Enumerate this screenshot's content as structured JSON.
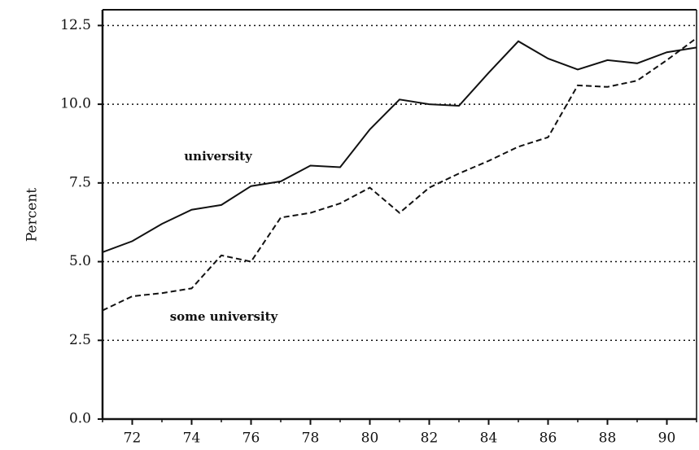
{
  "chart_data": {
    "type": "line",
    "y_label": "Percent",
    "x": [
      71,
      72,
      73,
      74,
      75,
      76,
      77,
      78,
      79,
      80,
      81,
      82,
      83,
      84,
      85,
      86,
      87,
      88,
      89,
      90,
      91
    ],
    "series": [
      {
        "name": "university",
        "color": "#111111",
        "dashed": false,
        "values": [
          5.3,
          5.65,
          6.2,
          6.65,
          6.8,
          7.4,
          7.55,
          8.05,
          8.0,
          9.2,
          10.15,
          10.0,
          9.95,
          11.0,
          12.0,
          11.45,
          11.1,
          11.4,
          11.3,
          11.65,
          11.8
        ]
      },
      {
        "name": "some university",
        "color": "#111111",
        "dashed": true,
        "values": [
          3.45,
          3.9,
          4.0,
          4.15,
          5.2,
          5.0,
          6.4,
          6.55,
          6.85,
          7.35,
          6.55,
          7.35,
          7.8,
          8.2,
          8.65,
          8.95,
          10.6,
          10.55,
          10.75,
          11.4,
          12.1
        ]
      }
    ],
    "xlim": [
      71,
      91
    ],
    "xticks": [
      72,
      74,
      76,
      78,
      80,
      82,
      84,
      86,
      88,
      90
    ],
    "ylim": [
      0,
      13
    ],
    "yticks": [
      {
        "value": 0,
        "label": "0.0"
      },
      {
        "value": 2.5,
        "label": "2.5"
      },
      {
        "value": 5,
        "label": "5.0"
      },
      {
        "value": 7.5,
        "label": "7.5"
      },
      {
        "value": 10,
        "label": "10.0"
      },
      {
        "value": 12.5,
        "label": "12.5"
      }
    ],
    "grid": true
  }
}
